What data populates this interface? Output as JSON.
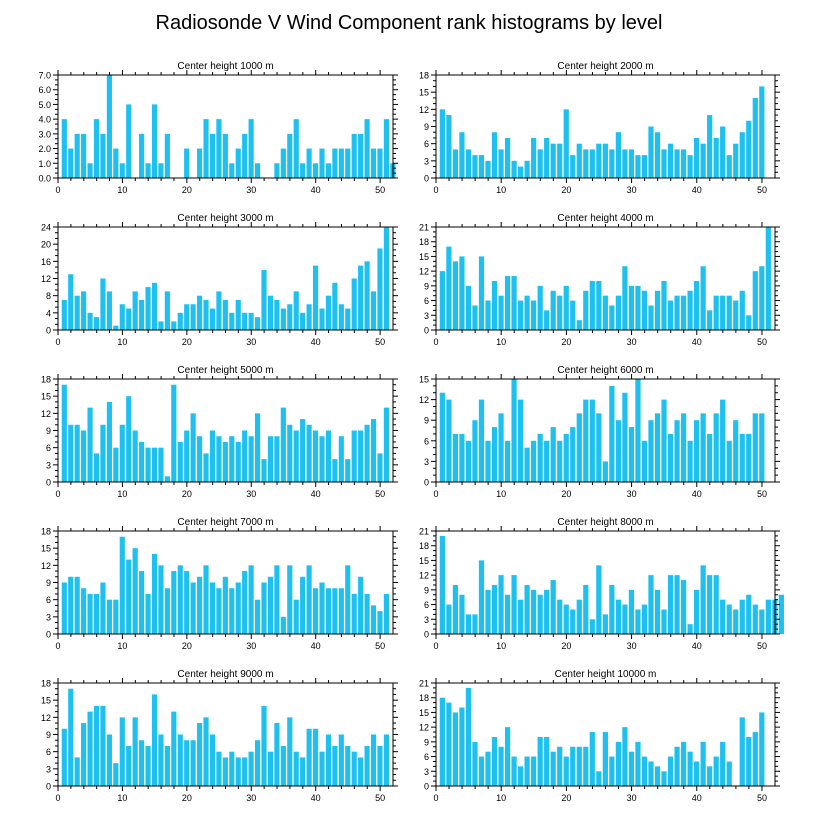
{
  "title": "Radiosonde V Wind Component rank histograms by level",
  "bar_color": "#1ec0f0",
  "chart_data": [
    {
      "type": "bar",
      "title": "Center height 1000 m",
      "xlim": [
        0,
        52
      ],
      "ylim": [
        0,
        7
      ],
      "xticks": [
        0,
        10,
        20,
        30,
        40,
        50
      ],
      "ytick_labels": [
        "0.0",
        "1.0",
        "2.0",
        "3.0",
        "4.0",
        "5.0",
        "6.0",
        "7.0"
      ],
      "values": [
        4,
        2,
        3,
        3,
        1,
        4,
        3,
        7,
        2,
        1,
        5,
        0,
        3,
        1,
        5,
        1,
        3,
        0,
        0,
        2,
        0,
        2,
        4,
        3,
        4,
        3,
        1,
        2,
        3,
        4,
        1,
        0,
        0,
        1,
        2,
        3,
        4,
        1,
        2,
        1,
        2,
        1,
        2,
        2,
        2,
        3,
        3,
        4,
        2,
        2,
        4,
        1
      ]
    },
    {
      "type": "bar",
      "title": "Center height 2000 m",
      "xlim": [
        0,
        52
      ],
      "ylim": [
        0,
        18
      ],
      "xticks": [
        0,
        10,
        20,
        30,
        40,
        50
      ],
      "ytick_labels": [
        "0",
        "3",
        "6",
        "9",
        "12",
        "15",
        "18"
      ],
      "values": [
        12,
        11,
        5,
        8,
        5,
        4,
        4,
        3,
        8,
        5,
        7,
        3,
        2,
        3,
        7,
        5,
        7,
        6,
        6,
        12,
        4,
        6,
        5,
        5,
        6,
        6,
        5,
        8,
        5,
        5,
        4,
        4,
        9,
        8,
        5,
        6,
        5,
        5,
        4,
        7,
        6,
        11,
        7,
        9,
        4,
        6,
        8,
        10,
        14,
        16
      ]
    },
    {
      "type": "bar",
      "title": "Center height 3000 m",
      "xlim": [
        0,
        52
      ],
      "ylim": [
        0,
        24
      ],
      "xticks": [
        0,
        10,
        20,
        30,
        40,
        50
      ],
      "ytick_labels": [
        "0",
        "4",
        "8",
        "12",
        "16",
        "20",
        "24"
      ],
      "values": [
        7,
        13,
        8,
        9,
        4,
        3,
        12,
        9,
        1,
        6,
        5,
        9,
        7,
        10,
        11,
        2,
        9,
        2,
        4,
        6,
        6,
        8,
        7,
        5,
        9,
        7,
        4,
        7,
        4,
        4,
        3,
        14,
        8,
        7,
        5,
        6,
        9,
        4,
        6,
        15,
        5,
        8,
        11,
        6,
        5,
        12,
        15,
        16,
        9,
        19,
        24
      ]
    },
    {
      "type": "bar",
      "title": "Center height 4000 m",
      "xlim": [
        0,
        52
      ],
      "ylim": [
        0,
        21
      ],
      "xticks": [
        0,
        10,
        20,
        30,
        40,
        50
      ],
      "ytick_labels": [
        "0",
        "3",
        "6",
        "9",
        "12",
        "15",
        "18",
        "21"
      ],
      "values": [
        12,
        17,
        14,
        15,
        9,
        5,
        15,
        6,
        10,
        7,
        11,
        11,
        6,
        7,
        6,
        9,
        4,
        8,
        7,
        9,
        6,
        2,
        8,
        10,
        10,
        7,
        5,
        7,
        13,
        9,
        9,
        8,
        5,
        8,
        10,
        6,
        7,
        7,
        8,
        10,
        13,
        4,
        7,
        7,
        7,
        6,
        8,
        3,
        12,
        13,
        21
      ]
    },
    {
      "type": "bar",
      "title": "Center height 5000 m",
      "xlim": [
        0,
        52
      ],
      "ylim": [
        0,
        18
      ],
      "xticks": [
        0,
        10,
        20,
        30,
        40,
        50
      ],
      "ytick_labels": [
        "0",
        "3",
        "6",
        "9",
        "12",
        "15",
        "18"
      ],
      "values": [
        17,
        10,
        10,
        9,
        13,
        5,
        10,
        14,
        6,
        10,
        15,
        9,
        7,
        6,
        6,
        6,
        1,
        17,
        7,
        9,
        12,
        8,
        5,
        9,
        8,
        7,
        8,
        7,
        9,
        8,
        12,
        4,
        8,
        8,
        13,
        10,
        9,
        11,
        10,
        9,
        8,
        9,
        4,
        8,
        4,
        9,
        9,
        10,
        11,
        5,
        13
      ]
    },
    {
      "type": "bar",
      "title": "Center height 6000 m",
      "xlim": [
        0,
        52
      ],
      "ylim": [
        0,
        15
      ],
      "xticks": [
        0,
        10,
        20,
        30,
        40,
        50
      ],
      "ytick_labels": [
        "0",
        "3",
        "6",
        "9",
        "12",
        "15"
      ],
      "values": [
        13,
        12,
        7,
        7,
        6,
        9,
        12,
        6,
        8,
        10,
        6,
        15,
        12,
        5,
        6,
        7,
        6,
        8,
        6,
        7,
        8,
        10,
        12,
        12,
        10,
        3,
        14,
        9,
        13,
        8,
        15,
        6,
        9,
        10,
        12,
        7,
        9,
        10,
        6,
        9,
        10,
        7,
        10,
        12,
        6,
        9,
        7,
        7,
        10,
        10
      ]
    },
    {
      "type": "bar",
      "title": "Center height 7000 m",
      "xlim": [
        0,
        52
      ],
      "ylim": [
        0,
        18
      ],
      "xticks": [
        0,
        10,
        20,
        30,
        40,
        50
      ],
      "ytick_labels": [
        "0",
        "3",
        "6",
        "9",
        "12",
        "15",
        "18"
      ],
      "values": [
        9,
        10,
        10,
        8,
        7,
        7,
        9,
        6,
        6,
        17,
        13,
        15,
        11,
        7,
        14,
        12,
        8,
        11,
        12,
        11,
        9,
        10,
        12,
        9,
        8,
        10,
        8,
        9,
        11,
        12,
        6,
        9,
        10,
        12,
        3,
        12,
        6,
        10,
        12,
        8,
        9,
        8,
        8,
        8,
        12,
        7,
        10,
        7,
        5,
        4,
        7
      ]
    },
    {
      "type": "bar",
      "title": "Center height 8000 m",
      "xlim": [
        0,
        52
      ],
      "ylim": [
        0,
        21
      ],
      "xticks": [
        0,
        10,
        20,
        30,
        40,
        50
      ],
      "ytick_labels": [
        "0",
        "3",
        "6",
        "9",
        "12",
        "15",
        "18",
        "21"
      ],
      "values": [
        20,
        6,
        10,
        8,
        4,
        4,
        15,
        9,
        10,
        12,
        8,
        12,
        7,
        10,
        9,
        8,
        9,
        11,
        7,
        6,
        5,
        7,
        10,
        3,
        14,
        4,
        10,
        7,
        6,
        9,
        5,
        6,
        12,
        9,
        5,
        12,
        12,
        11,
        2,
        9,
        14,
        12,
        12,
        7,
        6,
        5,
        7,
        8,
        6,
        5,
        7,
        7,
        8
      ]
    },
    {
      "type": "bar",
      "title": "Center height 9000 m",
      "xlim": [
        0,
        52
      ],
      "ylim": [
        0,
        18
      ],
      "xticks": [
        0,
        10,
        20,
        30,
        40,
        50
      ],
      "ytick_labels": [
        "0",
        "3",
        "6",
        "9",
        "12",
        "15",
        "18"
      ],
      "values": [
        10,
        17,
        5,
        11,
        13,
        14,
        14,
        9,
        4,
        12,
        7,
        12,
        8,
        7,
        16,
        9,
        7,
        13,
        9,
        8,
        8,
        11,
        12,
        9,
        6,
        5,
        6,
        5,
        5,
        6,
        8,
        14,
        6,
        11,
        7,
        12,
        6,
        5,
        10,
        10,
        6,
        9,
        7,
        9,
        7,
        6,
        5,
        7,
        9,
        7,
        9
      ]
    },
    {
      "type": "bar",
      "title": "Center height 10000 m",
      "xlim": [
        0,
        52
      ],
      "ylim": [
        0,
        21
      ],
      "xticks": [
        0,
        10,
        20,
        30,
        40,
        50
      ],
      "ytick_labels": [
        "0",
        "3",
        "6",
        "9",
        "12",
        "15",
        "18",
        "21"
      ],
      "values": [
        18,
        17,
        15,
        16,
        20,
        9,
        6,
        7,
        10,
        8,
        12,
        6,
        4,
        6,
        6,
        10,
        10,
        7,
        8,
        6,
        8,
        8,
        8,
        11,
        3,
        11,
        6,
        9,
        12,
        7,
        9,
        6,
        5,
        4,
        3,
        6,
        8,
        9,
        7,
        5,
        9,
        4,
        6,
        9,
        5,
        0,
        14,
        10,
        11,
        15
      ]
    }
  ]
}
